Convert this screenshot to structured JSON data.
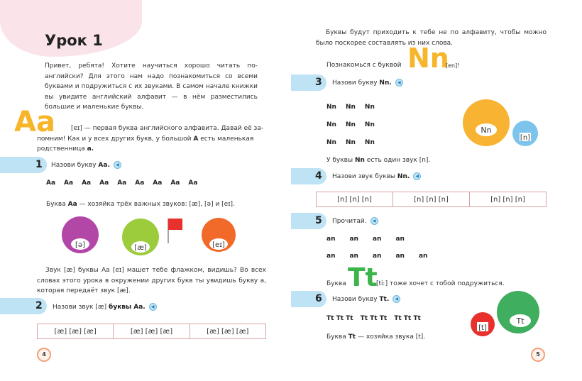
{
  "left": {
    "title": "Урок 1",
    "intro": "Привет, ребята! Хотите научиться хорошо читать по-английски? Для этого нам надо познакомиться со всеми буквами и подружиться с их звуками. В самом начале книжки вы увидите английский алфавит — в нём разместились большие и маленькие буквы.",
    "big_letter": "Aa",
    "a_intro_1": "[eɪ] — первая буква английского алфавита. Давай её за-",
    "a_intro_2": "помним! Как и у всех других букв, у большой",
    "a_intro_A": "A",
    "a_intro_3": "есть маленькая",
    "a_intro_4": "родственница",
    "a_intro_a": "a.",
    "task1": {
      "num": "1",
      "text": "Назови букву",
      "bold": "Aa."
    },
    "aa_row": [
      "Aa",
      "Aa",
      "Aa",
      "Aa",
      "Aa",
      "Aa",
      "Aa",
      "Aa",
      "Aa"
    ],
    "sounds_text": "Буква",
    "sounds_bold": "Aa",
    "sounds_rest": "— хозяйка трёх важных звуков: [æ], [ə] и [eɪ].",
    "monsters": [
      {
        "label": "[ə]",
        "color": "#b347a8"
      },
      {
        "label": "[æ]",
        "color": "#9ccc3c"
      },
      {
        "label": "[eɪ]",
        "color": "#f26a2a"
      }
    ],
    "flag_paragraph": "Звук [æ] буквы Aa [eɪ] машет тебе флажком, видишь? Во всех словах этого урока в окружении других букв ты увидишь букву a, которая передаёт звук [æ].",
    "task2": {
      "num": "2",
      "text": "Назови звук [æ]",
      "bold": "буквы Aa."
    },
    "table": [
      "[æ]  [æ]  [æ]",
      "[æ]  [æ]  [æ]",
      "[æ]  [æ]  [æ]"
    ],
    "page": "4"
  },
  "right": {
    "intro": "Буквы будут приходить к тебе не по алфавиту, чтобы можно было поскорее составлять из них слова.",
    "meet": "Познакомься с буквой",
    "big_n": "Nn",
    "n_sound": "[en]!",
    "task3": {
      "num": "3",
      "text": "Назови букву",
      "bold": "Nn."
    },
    "nn_grid": [
      [
        "Nn",
        "Nn",
        "Nn"
      ],
      [
        "Nn",
        "Nn",
        "Nn"
      ],
      [
        "Nn",
        "Nn",
        "Nn"
      ]
    ],
    "monsters_n": [
      {
        "label": "Nn",
        "color": "#f8b332"
      },
      {
        "label": "[n]",
        "color": "#7cc4ec"
      }
    ],
    "n_one": "У буквы",
    "n_one_bold": "Nn",
    "n_one_rest": "есть один звук [n].",
    "task4": {
      "num": "4",
      "text": "Назови звук буквы",
      "bold": "Nn."
    },
    "table": [
      "[n]  [n]  [n]",
      "[n]  [n]  [n]",
      "[n]  [n]  [n]"
    ],
    "task5": {
      "num": "5",
      "text": "Прочитай."
    },
    "an_row1": [
      "an",
      "an",
      "an",
      "an"
    ],
    "an_row2": [
      "an",
      "an",
      "an",
      "an",
      "an"
    ],
    "t_prefix": "Буква",
    "big_t": "Tt",
    "t_rest": "[tiː] тоже хочет с тобой подружиться.",
    "task6": {
      "num": "6",
      "text": "Назови букву",
      "bold": "Tt."
    },
    "tt_row": [
      "Tt Tt Tt",
      "Tt Tt Tt",
      "Tt Tt Tt"
    ],
    "t_sound": "Буква",
    "t_sound_bold": "Tt",
    "t_sound_rest": "— хозяйка звука [t].",
    "monsters_t": [
      {
        "label": "[t]",
        "color": "#e8302c"
      },
      {
        "label": "Tt",
        "color": "#3fae5e"
      }
    ],
    "page": "5"
  },
  "colors": {
    "orange": "#f7b52a",
    "green": "#3bb44a",
    "band": "#bde3f5",
    "pink": "#fbe3ea",
    "table_border": "#d9a3a3"
  },
  "icons": {
    "speaker": "speaker-icon"
  }
}
